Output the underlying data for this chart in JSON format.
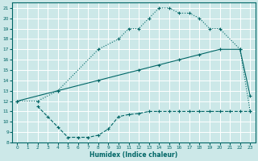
{
  "xlabel": "Humidex (Indice chaleur)",
  "bg_color": "#cce8e8",
  "grid_color": "#ffffff",
  "line_color": "#006666",
  "xlim": [
    -0.5,
    23.5
  ],
  "ylim": [
    8,
    21.5
  ],
  "xticks": [
    0,
    1,
    2,
    3,
    4,
    5,
    6,
    7,
    8,
    9,
    10,
    11,
    12,
    13,
    14,
    15,
    16,
    17,
    18,
    19,
    20,
    21,
    22,
    23
  ],
  "yticks": [
    8,
    9,
    10,
    11,
    12,
    13,
    14,
    15,
    16,
    17,
    18,
    19,
    20,
    21
  ],
  "curve_top_x": [
    0,
    2,
    4,
    8,
    10,
    11,
    12,
    13,
    14,
    15,
    16,
    17,
    18,
    19,
    20,
    22,
    23
  ],
  "curve_top_y": [
    12,
    12,
    13,
    17,
    18,
    19,
    19,
    20,
    21,
    21,
    20.5,
    20.5,
    20,
    19,
    19,
    17,
    11
  ],
  "curve_mid_x": [
    0,
    4,
    8,
    12,
    14,
    16,
    18,
    20,
    22,
    23
  ],
  "curve_mid_y": [
    12,
    13,
    14,
    15,
    15.5,
    16,
    16.5,
    17,
    17,
    12.5
  ],
  "curve_bot_x": [
    2,
    3,
    4,
    5,
    6,
    7,
    8,
    9,
    10,
    11,
    12,
    13,
    14,
    15,
    16,
    17,
    18,
    19,
    20,
    21,
    22,
    23
  ],
  "curve_bot_y": [
    11.5,
    10.5,
    9.5,
    8.5,
    8.5,
    8.5,
    8.7,
    9.3,
    10.5,
    10.7,
    10.8,
    11,
    11,
    11,
    11,
    11,
    11,
    11,
    11,
    11,
    11,
    11
  ]
}
